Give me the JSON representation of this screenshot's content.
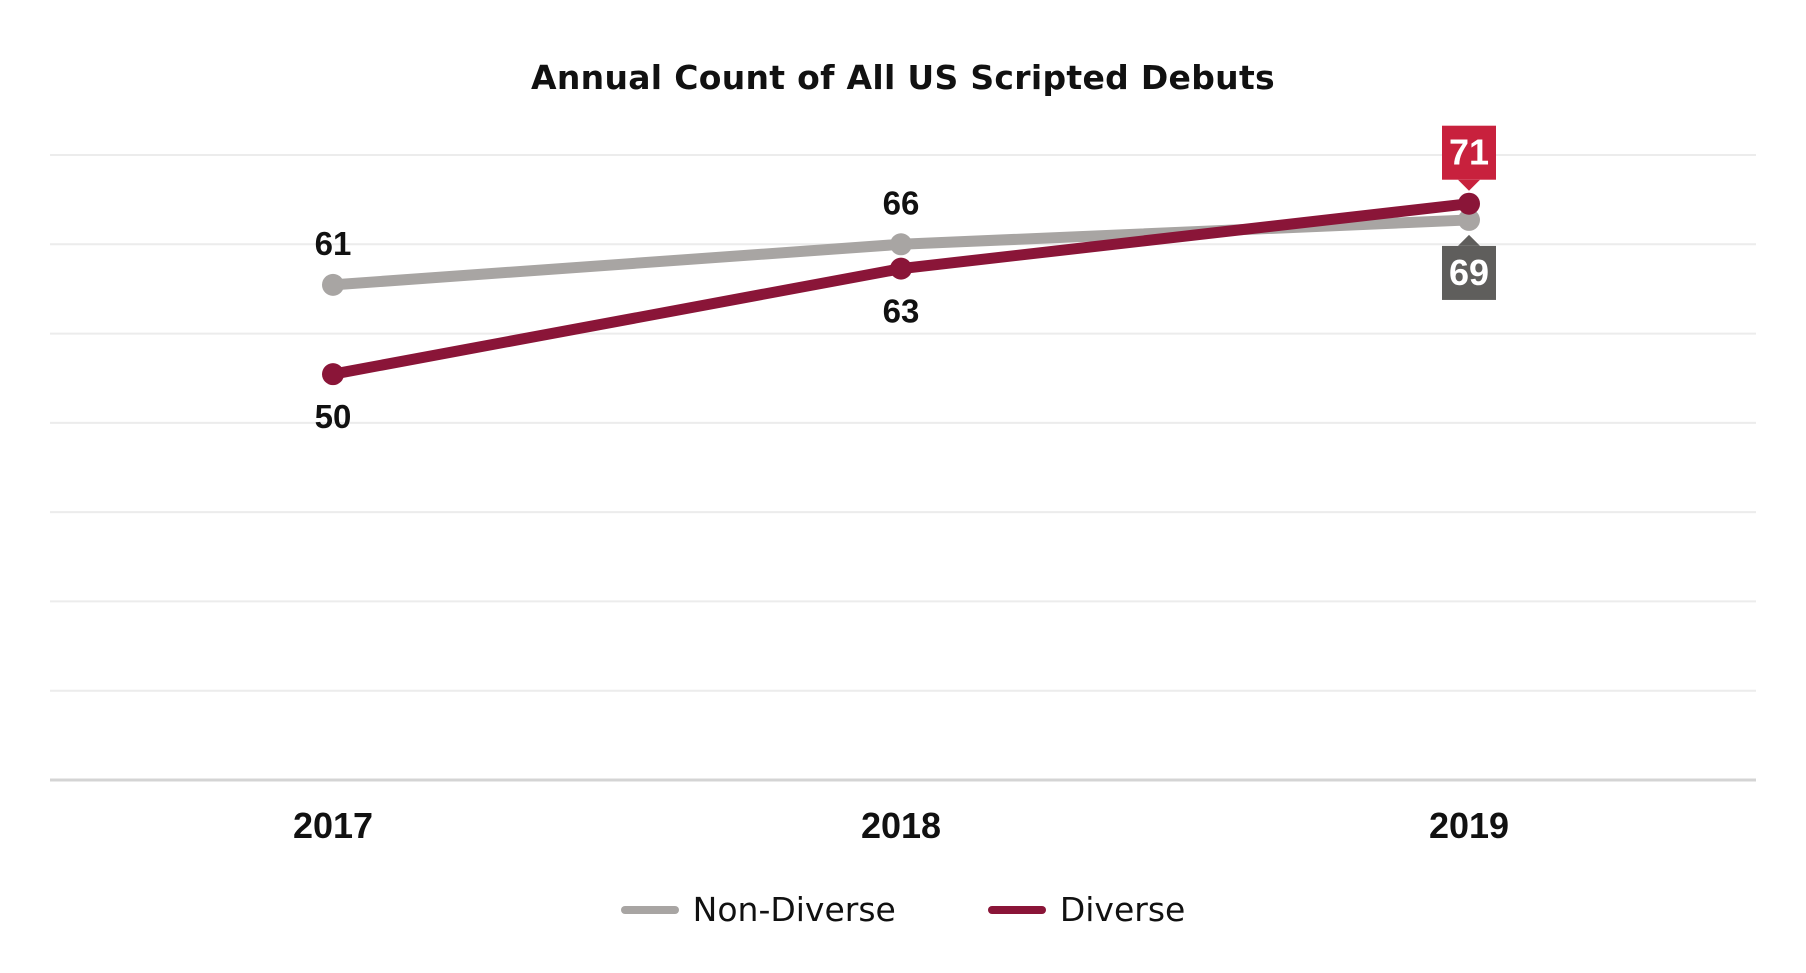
{
  "chart_data": {
    "type": "line",
    "title": "Annual Count of All US Scripted Debuts",
    "xlabel": "",
    "ylabel": "",
    "categories": [
      "2017",
      "2018",
      "2019"
    ],
    "series": [
      {
        "name": "Non-Diverse",
        "values": [
          61,
          66,
          69
        ],
        "color": "#a8a5a3",
        "label_color": "#5f5e5c"
      },
      {
        "name": "Diverse",
        "values": [
          50,
          63,
          71
        ],
        "color": "#8a1538",
        "label_color": "#c8213d"
      }
    ],
    "ylim": [
      0,
      77
    ],
    "grid": true,
    "legend": "bottom-center"
  }
}
